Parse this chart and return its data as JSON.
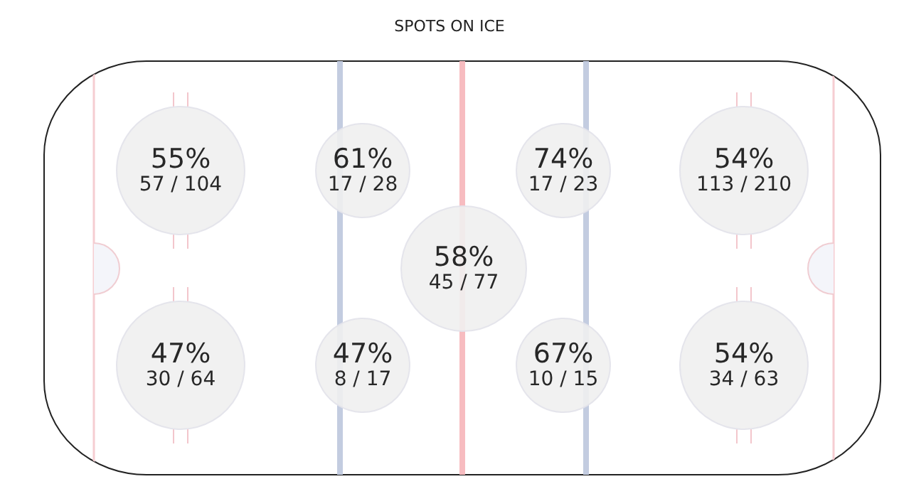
{
  "chart_data": {
    "type": "other",
    "title": "SPOTS ON ICE",
    "categories": [
      null,
      null,
      null,
      null,
      null,
      null,
      null,
      null,
      null
    ],
    "values": [
      55,
      61,
      74,
      54,
      58,
      47,
      47,
      67,
      54
    ],
    "value_labels": [
      "55%\n57 / 104",
      "61%\n17 / 28",
      "74%\n17 / 23",
      "54%\n113 / 210",
      "58%\n45 / 77",
      "47%\n30 / 64",
      "47%\n8 / 17",
      "67%\n10 / 15",
      "54%\n34 / 63"
    ],
    "color": "#efefef"
  }
}
